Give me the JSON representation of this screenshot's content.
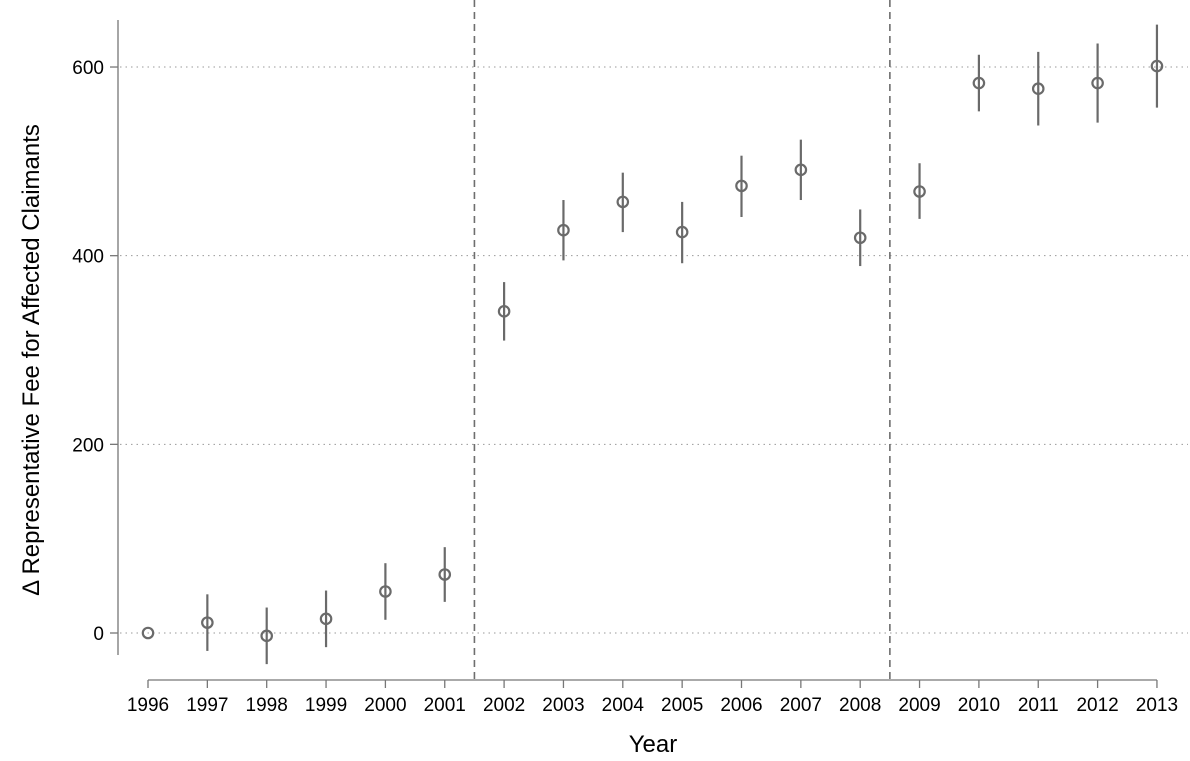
{
  "chart_data": {
    "type": "scatter",
    "xlabel": "Year",
    "ylabel": "Δ Representative Fee for Affected Claimants",
    "x": [
      1996,
      1997,
      1998,
      1999,
      2000,
      2001,
      2002,
      2003,
      2004,
      2005,
      2006,
      2007,
      2008,
      2009,
      2010,
      2011,
      2012,
      2013
    ],
    "y": [
      0,
      11,
      -3,
      15,
      44,
      62,
      341,
      427,
      457,
      425,
      474,
      491,
      419,
      468,
      583,
      577,
      583,
      601
    ],
    "ci_low": [
      0,
      -19,
      -33,
      -15,
      14,
      33,
      310,
      395,
      425,
      392,
      441,
      459,
      389,
      439,
      553,
      538,
      541,
      557
    ],
    "ci_high": [
      0,
      41,
      27,
      45,
      74,
      91,
      372,
      459,
      488,
      457,
      506,
      523,
      449,
      498,
      613,
      616,
      625,
      645
    ],
    "xticks": [
      "1996",
      "1997",
      "1998",
      "1999",
      "2000",
      "2001",
      "2002",
      "2003",
      "2004",
      "2005",
      "2006",
      "2007",
      "2008",
      "2009",
      "2010",
      "2011",
      "2012",
      "2013"
    ],
    "yticks": [
      0,
      200,
      400,
      600
    ],
    "ytick_labels": [
      "0",
      "200",
      "400",
      "600"
    ],
    "ylim": [
      -52,
      670
    ],
    "xlim": [
      1995.6,
      2013.4
    ],
    "vlines": [
      2001.5,
      2008.5
    ],
    "grid": "horizontal dotted",
    "marker": "hollow circle with 95% CI bars",
    "colors": {
      "marker": "#6a6a6a",
      "grid": "#9a9a9a",
      "axis": "#777777"
    }
  }
}
